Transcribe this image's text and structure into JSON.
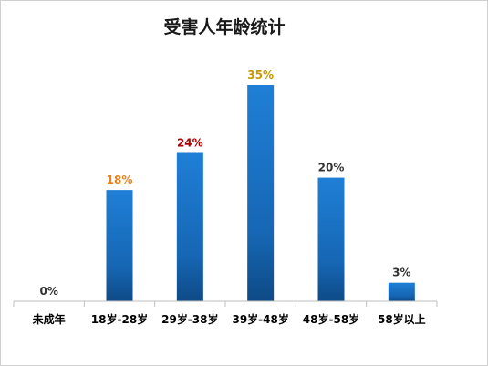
{
  "chart_data": {
    "type": "bar",
    "title": "受害人年龄统计",
    "categories": [
      "未成年",
      "18岁-28岁",
      "29岁-38岁",
      "39岁-48岁",
      "48岁-58岁",
      "58岁以上"
    ],
    "values": [
      0,
      18,
      24,
      35,
      20,
      3
    ],
    "data_labels": [
      "0%",
      "18%",
      "24%",
      "35%",
      "20%",
      "3%"
    ],
    "label_colors": [
      "#333333",
      "#e8821e",
      "#b00000",
      "#c89600",
      "#333333",
      "#333333"
    ],
    "bar_color": "#1a6fc0",
    "ylim": [
      0,
      35
    ],
    "grid": false,
    "legend": "none"
  }
}
